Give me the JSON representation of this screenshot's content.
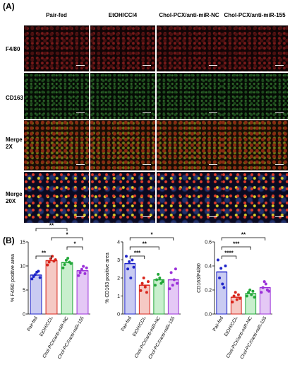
{
  "panel_a": {
    "label": "(A)",
    "columns": [
      "Pair-fed",
      "EtOH/CCl4",
      "Chol-PCX/anti-miR-NC",
      "Chol-PCX/anti-miR-155"
    ],
    "rows": [
      {
        "line1": "F4/80",
        "line2": ""
      },
      {
        "line1": "CD163",
        "line2": ""
      },
      {
        "line1": "Merge",
        "line2": "2X"
      },
      {
        "line1": "Merge",
        "line2": "20X"
      }
    ]
  },
  "panel_b": {
    "label": "(B)"
  },
  "chart_data": [
    {
      "type": "bar",
      "ylabel": "% F4/80 positive area",
      "categories": [
        "Pair-fed",
        "EtOH/CCl₄",
        "Chol-PCX/anti-miR-NC",
        "Chol-PCX/anti-miR-155"
      ],
      "values": [
        8.1,
        11.1,
        10.7,
        9.0
      ],
      "points": [
        [
          7.3,
          7.8,
          8.2,
          8.7,
          8.9,
          7.6
        ],
        [
          10.2,
          10.8,
          11.5,
          12.0,
          11.0,
          11.3
        ],
        [
          9.6,
          10.3,
          11.2,
          11.6,
          10.8,
          10.5
        ],
        [
          8.0,
          8.6,
          9.3,
          9.9,
          8.4,
          9.6
        ]
      ],
      "ylim": [
        0,
        15
      ],
      "yticks": [
        0,
        5,
        10,
        15
      ],
      "sig": [
        {
          "from": 0,
          "to": 1,
          "label": "**",
          "level": 1
        },
        {
          "from": 0,
          "to": 2,
          "label": "**",
          "level": 4
        },
        {
          "from": 1,
          "to": 3,
          "label": "*",
          "level": 3
        },
        {
          "from": 2,
          "to": 3,
          "label": "*",
          "level": 2
        }
      ]
    },
    {
      "type": "bar",
      "ylabel": "% CD163 positive area",
      "categories": [
        "Pair-fed",
        "EtOH/CCl₄",
        "Chol-PCX/anti-miR-NC",
        "Chol-PCX/anti-miR-155"
      ],
      "values": [
        2.8,
        1.6,
        1.9,
        1.9
      ],
      "points": [
        [
          3.2,
          2.5,
          2.9,
          2.0,
          3.0,
          2.6
        ],
        [
          1.3,
          1.7,
          2.0,
          1.5,
          1.2,
          1.8
        ],
        [
          1.6,
          1.9,
          2.2,
          2.0,
          1.7,
          1.8
        ],
        [
          1.4,
          2.3,
          1.6,
          1.9,
          2.5,
          1.7
        ]
      ],
      "ylim": [
        0,
        4
      ],
      "yticks": [
        0,
        1,
        2,
        3,
        4
      ],
      "sig": [
        {
          "from": 0,
          "to": 1,
          "label": "***",
          "level": 1
        },
        {
          "from": 0,
          "to": 2,
          "label": "**",
          "level": 2
        },
        {
          "from": 0,
          "to": 3,
          "label": "*",
          "level": 3
        }
      ]
    },
    {
      "type": "bar",
      "ylabel": "CD163/F4/80",
      "categories": [
        "Pair-fed",
        "EtOH/CCl₄",
        "Chol-PCX/anti-miR-NC",
        "Chol-PCX/anti-miR-155"
      ],
      "values": [
        0.35,
        0.14,
        0.17,
        0.22
      ],
      "points": [
        [
          0.45,
          0.3,
          0.38,
          0.25,
          0.22,
          0.4
        ],
        [
          0.1,
          0.15,
          0.18,
          0.12,
          0.16,
          0.13
        ],
        [
          0.15,
          0.18,
          0.2,
          0.16,
          0.19,
          0.14
        ],
        [
          0.18,
          0.22,
          0.27,
          0.25,
          0.2,
          0.19
        ]
      ],
      "ylim": [
        0,
        0.6
      ],
      "yticks": [
        0.0,
        0.2,
        0.4,
        0.6
      ],
      "sig": [
        {
          "from": 0,
          "to": 1,
          "label": "****",
          "level": 1
        },
        {
          "from": 0,
          "to": 2,
          "label": "***",
          "level": 2
        },
        {
          "from": 0,
          "to": 3,
          "label": "**",
          "level": 3
        }
      ]
    }
  ],
  "colors": {
    "groups": [
      "#1f25c9",
      "#d9261c",
      "#23a83a",
      "#9b30d9"
    ],
    "fills": [
      "#c9cbf2",
      "#f5c9c4",
      "#c8efcd",
      "#e4c8f5"
    ]
  }
}
